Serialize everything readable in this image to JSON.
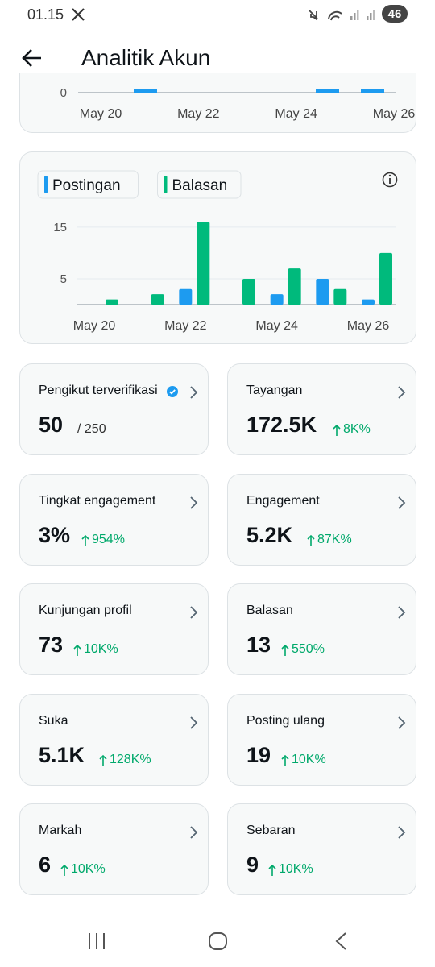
{
  "status_bar": {
    "time": "01.15",
    "battery": "46"
  },
  "header": {
    "title": "Analitik Akun"
  },
  "top_chart": {
    "yticks": [
      0
    ],
    "categories": [
      "May 20",
      null,
      "May 22",
      null,
      "May 24",
      null,
      "May 26"
    ]
  },
  "activity_chart": {
    "type": "bar",
    "categories": [
      "May 20",
      null,
      "May 22",
      null,
      "May 24",
      null,
      "May 26"
    ],
    "series": [
      {
        "name": "Postingan",
        "color": "#1d9bf0",
        "values": [
          0,
          0,
          3,
          0,
          2,
          5,
          1
        ]
      },
      {
        "name": "Balasan",
        "color": "#00ba7c",
        "values": [
          1,
          2,
          16,
          5,
          7,
          3,
          10
        ]
      }
    ],
    "ylim": [
      0,
      17
    ],
    "yticks": [
      5,
      15
    ],
    "grid": true
  },
  "metrics": [
    {
      "label": "Pengikut terverifikasi",
      "value": "50",
      "extra": "/ 250",
      "verified": true
    },
    {
      "label": "Tayangan",
      "value": "172.5K",
      "change": "8K%"
    },
    {
      "label": "Tingkat engagement",
      "value": "3%",
      "change": "954%"
    },
    {
      "label": "Engagement",
      "value": "5.2K",
      "change": "87K%"
    },
    {
      "label": "Kunjungan profil",
      "value": "73",
      "change": "10K%"
    },
    {
      "label": "Balasan",
      "value": "13",
      "change": "550%"
    },
    {
      "label": "Suka",
      "value": "5.1K",
      "change": "128K%"
    },
    {
      "label": "Posting ulang",
      "value": "19",
      "change": "10K%"
    },
    {
      "label": "Markah",
      "value": "6",
      "change": "10K%"
    },
    {
      "label": "Sebaran",
      "value": "9",
      "change": "10K%"
    }
  ]
}
